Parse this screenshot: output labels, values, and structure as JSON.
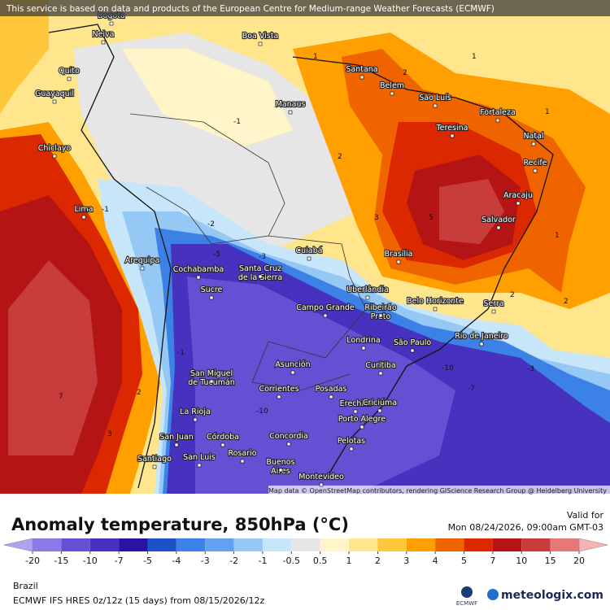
{
  "notice": "This service is based on data and products of the European Centre for Medium-range Weather Forecasts (ECMWF)",
  "attribution": "Map data © OpenStreetMap contributors, rendering GIScience Research Group @ Heidelberg University",
  "title": "Anomaly temperature, 850hPa (°C)",
  "valid_label": "Valid for",
  "valid_time": "Mon 08/24/2026, 09:00am GMT-03",
  "region": "Brazil",
  "model": "ECMWF IFS HRES 0z/12z (15 days) from 08/15/2026/12z",
  "ecmwf_logo": "ECMWF",
  "brand": "meteologix.com",
  "cities": [
    {
      "label": [
        "Bogota"
      ]
    },
    {
      "label": [
        "Neiva"
      ]
    },
    {
      "label": [
        "Boa Vista"
      ]
    },
    {
      "label": [
        "Quito"
      ]
    },
    {
      "label": [
        "Guayaquil"
      ]
    },
    {
      "label": [
        "Santana"
      ]
    },
    {
      "label": [
        "Belem"
      ]
    },
    {
      "label": [
        "Manaus"
      ]
    },
    {
      "label": [
        "São Luís"
      ]
    },
    {
      "label": [
        "Fortaleza"
      ]
    },
    {
      "label": [
        "Teresina"
      ]
    },
    {
      "label": [
        "Natal"
      ]
    },
    {
      "label": [
        "Chiclayo"
      ]
    },
    {
      "label": [
        "Recife"
      ]
    },
    {
      "label": [
        "Aracaju"
      ]
    },
    {
      "label": [
        "Lima"
      ]
    },
    {
      "label": [
        "Salvador"
      ]
    },
    {
      "label": [
        "Cuiabá"
      ]
    },
    {
      "label": [
        "Brasília"
      ]
    },
    {
      "label": [
        "Arequipa"
      ]
    },
    {
      "label": [
        "Cochabamba"
      ]
    },
    {
      "label": [
        "Santa Cruz",
        "de la Sierra"
      ]
    },
    {
      "label": [
        "Sucre"
      ]
    },
    {
      "label": [
        "Uberlândia"
      ]
    },
    {
      "label": [
        "Belo Horizonte"
      ]
    },
    {
      "label": [
        "Campo Grande"
      ]
    },
    {
      "label": [
        "Ribeirão",
        "Preto"
      ]
    },
    {
      "label": [
        "Serra"
      ]
    },
    {
      "label": [
        "Rio de Janeiro"
      ]
    },
    {
      "label": [
        "Londrina"
      ]
    },
    {
      "label": [
        "São Paulo"
      ]
    },
    {
      "label": [
        "Asunción"
      ]
    },
    {
      "label": [
        "Curitiba"
      ]
    },
    {
      "label": [
        "San Miguel",
        "de Tucumán"
      ]
    },
    {
      "label": [
        "Corrientes"
      ]
    },
    {
      "label": [
        "Posadas"
      ]
    },
    {
      "label": [
        "Erechim"
      ]
    },
    {
      "label": [
        "Criciúma"
      ]
    },
    {
      "label": [
        "La Rioja"
      ]
    },
    {
      "label": [
        "Porto Alegre"
      ]
    },
    {
      "label": [
        "San Juan"
      ]
    },
    {
      "label": [
        "Córdoba"
      ]
    },
    {
      "label": [
        "Concordia"
      ]
    },
    {
      "label": [
        "Pelotas"
      ]
    },
    {
      "label": [
        "Santiago"
      ]
    },
    {
      "label": [
        "San Luis"
      ]
    },
    {
      "label": [
        "Rosario"
      ]
    },
    {
      "label": [
        "Buenos",
        "Aires"
      ]
    },
    {
      "label": [
        "Montevideo"
      ]
    }
  ],
  "contour_labels": [
    1,
    2,
    -1,
    1,
    2,
    3,
    2,
    1,
    -1,
    -2,
    -3,
    -5,
    -10,
    -7,
    7,
    3,
    2,
    -1,
    -10,
    -3,
    5,
    1,
    2
  ],
  "legend": {
    "ticks": [
      -20,
      -15,
      -10,
      -7,
      -5,
      -4,
      -3,
      -2,
      -1,
      -0.5,
      0.5,
      1,
      2,
      3,
      4,
      5,
      7,
      10,
      15,
      20
    ],
    "colors": [
      "#b4a0f0",
      "#8c78e6",
      "#6450d2",
      "#4632be",
      "#2814a0",
      "#1e50c8",
      "#3c82e6",
      "#64a0f0",
      "#96c8f5",
      "#c8e6fa",
      "#e6e6e6",
      "#fff5c8",
      "#ffe68c",
      "#ffc83c",
      "#ffa000",
      "#f06400",
      "#dc2800",
      "#b41414",
      "#c83c3c",
      "#e67878",
      "#f5b4b4"
    ]
  }
}
